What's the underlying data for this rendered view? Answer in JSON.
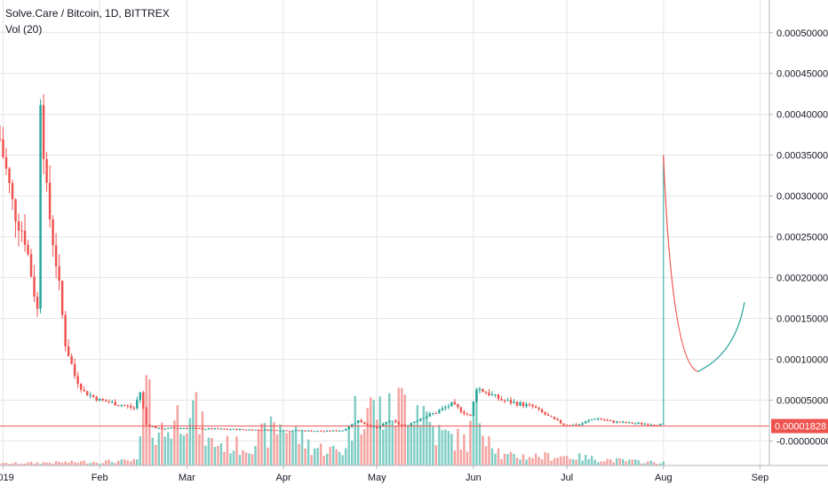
{
  "header": {
    "symbol_line": "Solve.Care / Bitcoin, 1D, BITTREX",
    "volume_line": "Vol (20)"
  },
  "colors": {
    "up": "#26a69a",
    "down": "#ef5350",
    "up_volume": "#7fcdc4",
    "down_volume": "#f4a3a0",
    "grid": "#e6e6e6",
    "axis_text": "#131722",
    "price_line": "#ef5350",
    "price_label_bg": "#ef5350",
    "price_label_text": "#ffffff",
    "projection_down": "#ef5350",
    "projection_up": "#26a69a"
  },
  "current_price_label": "0.00001828",
  "chart_data": {
    "type": "candlestick",
    "y_axis": {
      "min": -3e-05,
      "max": 0.00054,
      "ticks": [
        {
          "value": 0.0005,
          "label": "0.00050000"
        },
        {
          "value": 0.00045,
          "label": "0.00045000"
        },
        {
          "value": 0.0004,
          "label": "0.00040000"
        },
        {
          "value": 0.00035,
          "label": "0.00035000"
        },
        {
          "value": 0.0003,
          "label": "0.00030000"
        },
        {
          "value": 0.00025,
          "label": "0.00025000"
        },
        {
          "value": 0.0002,
          "label": "0.00020000"
        },
        {
          "value": 0.00015,
          "label": "0.00015000"
        },
        {
          "value": 0.0001,
          "label": "0.00010000"
        },
        {
          "value": 5e-05,
          "label": "0.00005000"
        },
        {
          "value": 0.0,
          "label": "-0.00000000"
        }
      ]
    },
    "x_axis": {
      "start": "2018-12-31",
      "end": "2019-09-04",
      "ticks": [
        {
          "date": "2019-01-01",
          "label": "2019"
        },
        {
          "date": "2019-02-01",
          "label": "Feb"
        },
        {
          "date": "2019-03-01",
          "label": "Mar"
        },
        {
          "date": "2019-04-01",
          "label": "Apr"
        },
        {
          "date": "2019-05-01",
          "label": "May"
        },
        {
          "date": "2019-06-01",
          "label": "Jun"
        },
        {
          "date": "2019-07-01",
          "label": "Jul"
        },
        {
          "date": "2019-08-01",
          "label": "Aug"
        },
        {
          "date": "2019-09-01",
          "label": "Sep"
        }
      ]
    },
    "price_anchors": [
      [
        "2018-12-31",
        0.00037
      ],
      [
        "2019-01-04",
        0.00029
      ],
      [
        "2019-01-08",
        0.00025
      ],
      [
        "2019-01-12",
        0.00016
      ],
      [
        "2019-01-13",
        0.00043
      ],
      [
        "2019-01-15",
        0.0003
      ],
      [
        "2019-01-18",
        0.00022
      ],
      [
        "2019-01-21",
        0.00012
      ],
      [
        "2019-01-24",
        8e-05
      ],
      [
        "2019-01-27",
        6e-05
      ],
      [
        "2019-02-01",
        5e-05
      ],
      [
        "2019-02-07",
        4.5e-05
      ],
      [
        "2019-02-12",
        4e-05
      ],
      [
        "2019-02-14",
        6e-05
      ],
      [
        "2019-02-16",
        2e-05
      ],
      [
        "2019-02-20",
        1.5e-05
      ],
      [
        "2019-03-01",
        1.6e-05
      ],
      [
        "2019-03-04",
        1.5e-05
      ],
      [
        "2019-04-01",
        1.3e-05
      ],
      [
        "2019-04-15",
        1.2e-05
      ],
      [
        "2019-04-20",
        1.3e-05
      ],
      [
        "2019-04-25",
        2.5e-05
      ],
      [
        "2019-05-01",
        1.5e-05
      ],
      [
        "2019-05-05",
        2.5e-05
      ],
      [
        "2019-05-10",
        1.8e-05
      ],
      [
        "2019-05-15",
        2.8e-05
      ],
      [
        "2019-05-20",
        3.5e-05
      ],
      [
        "2019-05-25",
        4.5e-05
      ],
      [
        "2019-05-31",
        3e-05
      ],
      [
        "2019-06-02",
        6.5e-05
      ],
      [
        "2019-06-05",
        6e-05
      ],
      [
        "2019-06-10",
        5e-05
      ],
      [
        "2019-06-20",
        4.2e-05
      ],
      [
        "2019-06-25",
        3e-05
      ],
      [
        "2019-06-30",
        2e-05
      ],
      [
        "2019-07-05",
        2e-05
      ],
      [
        "2019-07-10",
        2.8e-05
      ],
      [
        "2019-07-15",
        2.4e-05
      ],
      [
        "2019-07-20",
        2.2e-05
      ],
      [
        "2019-08-01",
        2e-05
      ]
    ],
    "volume_anchors": [
      [
        "2018-12-31",
        0.02
      ],
      [
        "2019-01-13",
        0.03
      ],
      [
        "2019-02-13",
        0.05
      ],
      [
        "2019-02-16",
        0.8
      ],
      [
        "2019-02-18",
        0.45
      ],
      [
        "2019-02-22",
        0.35
      ],
      [
        "2019-03-02",
        0.7
      ],
      [
        "2019-03-08",
        0.25
      ],
      [
        "2019-03-20",
        0.2
      ],
      [
        "2019-04-01",
        0.45
      ],
      [
        "2019-04-10",
        0.2
      ],
      [
        "2019-04-20",
        0.15
      ],
      [
        "2019-04-25",
        0.65
      ],
      [
        "2019-05-01",
        0.6
      ],
      [
        "2019-05-05",
        0.55
      ],
      [
        "2019-05-10",
        0.7
      ],
      [
        "2019-05-15",
        0.65
      ],
      [
        "2019-05-20",
        0.35
      ],
      [
        "2019-05-30",
        0.25
      ],
      [
        "2019-06-02",
        0.6
      ],
      [
        "2019-06-10",
        0.1
      ],
      [
        "2019-07-01",
        0.1
      ],
      [
        "2019-07-15",
        0.06
      ],
      [
        "2019-08-01",
        0.03
      ]
    ],
    "volume_max_relative": 1.0,
    "current_price": 1.828e-05,
    "projection": {
      "spike_date": "2019-08-01",
      "spike_low": 2e-05,
      "spike_high": 0.00035,
      "trough_date": "2019-08-12",
      "trough_value": 8.5e-05,
      "end_date": "2019-08-27",
      "end_value": 0.00017
    },
    "grid": true
  }
}
